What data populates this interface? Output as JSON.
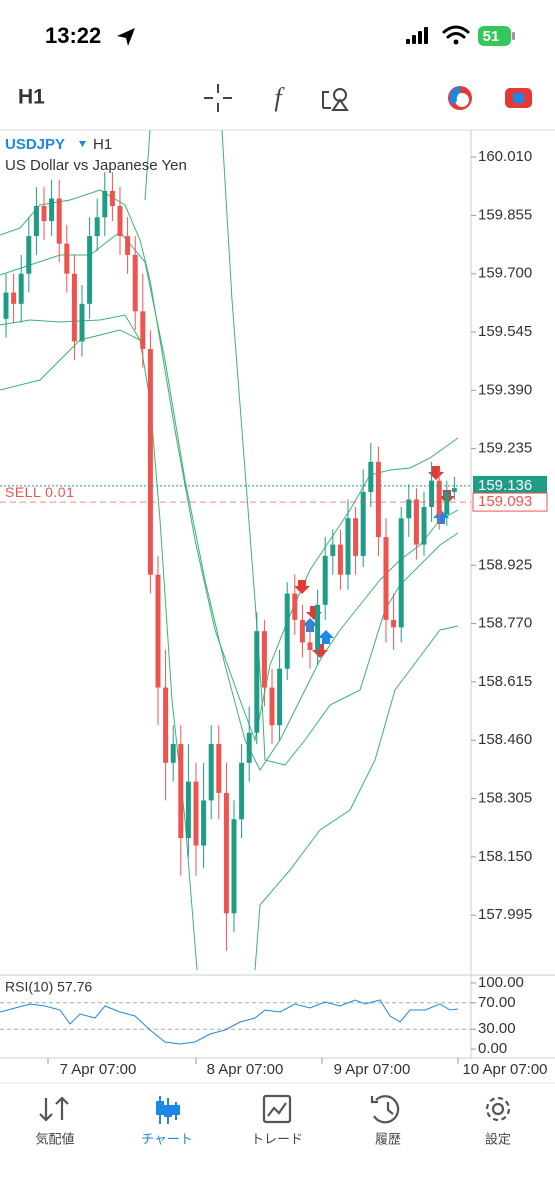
{
  "status_bar": {
    "time": "13:22",
    "battery": "51"
  },
  "toolbar": {
    "timeframe": "H1"
  },
  "chart_data": {
    "type": "candlestick",
    "symbol": "USDJPY",
    "timeframe": "H1",
    "description": "US Dollar vs Japanese Yen",
    "open": [
      159.58,
      159.65,
      159.62,
      159.7,
      159.8,
      159.88,
      159.84,
      159.9,
      159.78,
      159.7,
      159.52,
      159.62,
      159.8,
      159.85,
      159.92,
      159.88,
      159.8,
      159.75,
      159.6,
      159.5,
      158.9,
      158.6,
      158.4,
      158.45,
      158.2,
      158.35,
      158.18,
      158.3,
      158.45,
      158.32,
      158.0,
      158.25,
      158.4,
      158.48,
      158.75,
      158.6,
      158.5,
      158.65,
      158.85,
      158.78,
      158.72,
      158.7,
      158.82,
      158.95,
      158.98,
      158.9,
      159.05,
      158.95,
      159.12,
      159.2,
      159.0,
      158.78,
      158.76,
      159.05,
      159.1,
      158.98,
      159.08,
      159.15,
      159.06,
      159.12
    ],
    "high": [
      159.7,
      159.7,
      159.75,
      159.85,
      159.93,
      159.93,
      159.95,
      159.95,
      159.83,
      159.75,
      159.67,
      159.85,
      159.9,
      159.97,
      159.97,
      159.93,
      159.85,
      159.8,
      159.7,
      159.55,
      158.95,
      158.7,
      158.5,
      158.5,
      158.45,
      158.4,
      158.4,
      158.5,
      158.5,
      158.4,
      158.3,
      158.45,
      158.55,
      158.8,
      158.78,
      158.65,
      158.7,
      158.88,
      158.9,
      158.82,
      158.78,
      158.86,
      159.0,
      159.02,
      159.02,
      159.1,
      159.08,
      159.18,
      159.25,
      159.24,
      159.05,
      158.85,
      159.08,
      159.14,
      159.13,
      159.12,
      159.2,
      159.18,
      159.15,
      159.16
    ],
    "low": [
      159.53,
      159.57,
      159.57,
      159.65,
      159.75,
      159.79,
      159.8,
      159.73,
      159.65,
      159.47,
      159.48,
      159.58,
      159.76,
      159.8,
      159.84,
      159.75,
      159.7,
      159.55,
      159.45,
      158.85,
      158.5,
      158.3,
      158.35,
      158.1,
      158.15,
      158.1,
      158.12,
      158.25,
      158.25,
      157.9,
      157.95,
      158.2,
      158.35,
      158.45,
      158.55,
      158.45,
      158.46,
      158.62,
      158.74,
      158.68,
      158.65,
      158.66,
      158.78,
      158.9,
      158.86,
      158.86,
      158.9,
      158.92,
      159.08,
      158.95,
      158.72,
      158.7,
      158.72,
      159.0,
      158.94,
      158.95,
      159.04,
      159.02,
      159.03,
      159.1
    ],
    "close": [
      159.65,
      159.62,
      159.7,
      159.8,
      159.88,
      159.84,
      159.9,
      159.78,
      159.7,
      159.52,
      159.62,
      159.8,
      159.85,
      159.92,
      159.88,
      159.8,
      159.75,
      159.6,
      159.5,
      158.9,
      158.6,
      158.4,
      158.45,
      158.2,
      158.35,
      158.18,
      158.3,
      158.45,
      158.32,
      158.0,
      158.25,
      158.4,
      158.48,
      158.75,
      158.6,
      158.5,
      158.65,
      158.85,
      158.78,
      158.72,
      158.7,
      158.82,
      158.95,
      158.98,
      158.9,
      159.05,
      158.95,
      159.12,
      159.2,
      159.0,
      158.78,
      158.76,
      159.05,
      159.1,
      158.98,
      159.08,
      159.15,
      159.06,
      159.12,
      159.13
    ],
    "up_color": "#1f9c86",
    "down_color": "#ef5350",
    "ylim": [
      157.836,
      160.082
    ],
    "yticks": [
      {
        "value": 160.01,
        "label": "160.010"
      },
      {
        "value": 159.855,
        "label": "159.855"
      },
      {
        "value": 159.7,
        "label": "159.700"
      },
      {
        "value": 159.545,
        "label": "159.545"
      },
      {
        "value": 159.39,
        "label": "159.390"
      },
      {
        "value": 159.235,
        "label": "159.235"
      },
      {
        "value": 158.925,
        "label": "158.925"
      },
      {
        "value": 158.77,
        "label": "158.770"
      },
      {
        "value": 158.615,
        "label": "158.615"
      },
      {
        "value": 158.46,
        "label": "158.460"
      },
      {
        "value": 158.305,
        "label": "158.305"
      },
      {
        "value": 158.15,
        "label": "158.150"
      },
      {
        "value": 157.995,
        "label": "157.995"
      }
    ],
    "bid": {
      "value": 159.136,
      "label": "159.136",
      "color": "#1f9c86"
    },
    "position": {
      "text": "SELL 0.01",
      "value": 159.093,
      "label": "159.093",
      "color": "#ef5350"
    },
    "xlabels": [
      "7 Apr 07:00",
      "8 Apr 07:00",
      "9 Apr 07:00",
      "10 Apr 07:00"
    ],
    "rsi": {
      "label": "RSI(10) 57.76",
      "ylim": [
        -13.6,
        112.1
      ],
      "yticks": [
        {
          "value": 100,
          "label": "100.00"
        },
        {
          "value": 70,
          "label": "70.00"
        },
        {
          "value": 30,
          "label": "30.00"
        },
        {
          "value": 0,
          "label": "0.00"
        }
      ],
      "levels": [
        70,
        30
      ]
    }
  },
  "tabs": [
    "気配値",
    "チャート",
    "トレード",
    "履歴",
    "設定"
  ],
  "active_tab": 1
}
